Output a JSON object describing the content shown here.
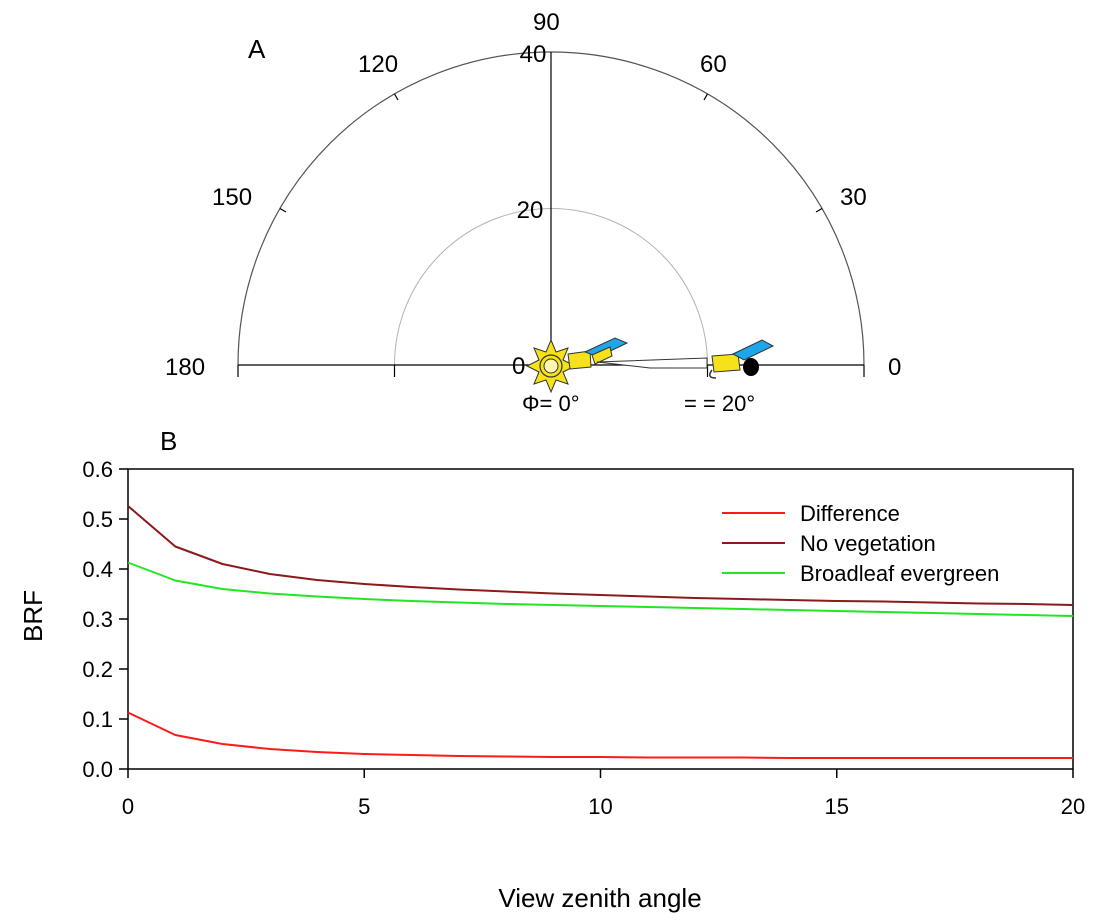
{
  "panel_a": {
    "label": "A",
    "angle_labels": [
      "0",
      "30",
      "60",
      "90",
      "120",
      "150",
      "180"
    ],
    "radial_labels": [
      "0",
      "20",
      "40"
    ],
    "phi_label": "Φ= 0°",
    "zenith_label": "= = 20°"
  },
  "chart_data": [
    {
      "type": "polar",
      "panel": "A",
      "angle_ticks": [
        0,
        30,
        60,
        90,
        120,
        150,
        180
      ],
      "radial_ticks": [
        0,
        20,
        40
      ],
      "rlim": [
        0,
        40
      ],
      "sun_position": {
        "r": 0,
        "angle": 0
      },
      "sensor_positions": [
        {
          "r": 0,
          "angle": 0
        },
        {
          "r": 20,
          "angle": 0
        }
      ],
      "icon_colors": {
        "sun": "#f5e21b",
        "sensor_body": "#f5e21b",
        "sensor_panel": "#1ea7e8"
      }
    },
    {
      "type": "line",
      "panel": "B",
      "label": "B",
      "xlabel": "View zenith angle",
      "ylabel": "BRF",
      "xlim": [
        0,
        20
      ],
      "ylim": [
        0,
        0.6
      ],
      "xticks": [
        "0",
        "5",
        "10",
        "15",
        "20"
      ],
      "yticks": [
        "0.0",
        "0.1",
        "0.2",
        "0.3",
        "0.4",
        "0.5",
        "0.6"
      ],
      "legend_position": "top-right",
      "x": [
        0,
        1,
        2,
        3,
        4,
        5,
        6,
        7,
        8,
        9,
        10,
        11,
        12,
        13,
        14,
        15,
        16,
        17,
        18,
        19,
        20
      ],
      "series": [
        {
          "name": "Difference",
          "color": "#ff1a1a",
          "values": [
            0.113,
            0.068,
            0.05,
            0.04,
            0.034,
            0.03,
            0.028,
            0.026,
            0.025,
            0.024,
            0.024,
            0.023,
            0.023,
            0.023,
            0.022,
            0.022,
            0.022,
            0.022,
            0.022,
            0.022,
            0.022
          ]
        },
        {
          "name": "No vegetation",
          "color": "#8b1a1a",
          "values": [
            0.526,
            0.445,
            0.41,
            0.39,
            0.378,
            0.37,
            0.364,
            0.359,
            0.355,
            0.351,
            0.348,
            0.345,
            0.342,
            0.34,
            0.338,
            0.336,
            0.335,
            0.333,
            0.331,
            0.33,
            0.328
          ]
        },
        {
          "name": "Broadleaf evergreen",
          "color": "#22e622",
          "values": [
            0.413,
            0.377,
            0.36,
            0.351,
            0.345,
            0.34,
            0.336,
            0.333,
            0.33,
            0.328,
            0.326,
            0.324,
            0.322,
            0.32,
            0.318,
            0.316,
            0.314,
            0.312,
            0.31,
            0.308,
            0.306
          ]
        }
      ]
    }
  ]
}
